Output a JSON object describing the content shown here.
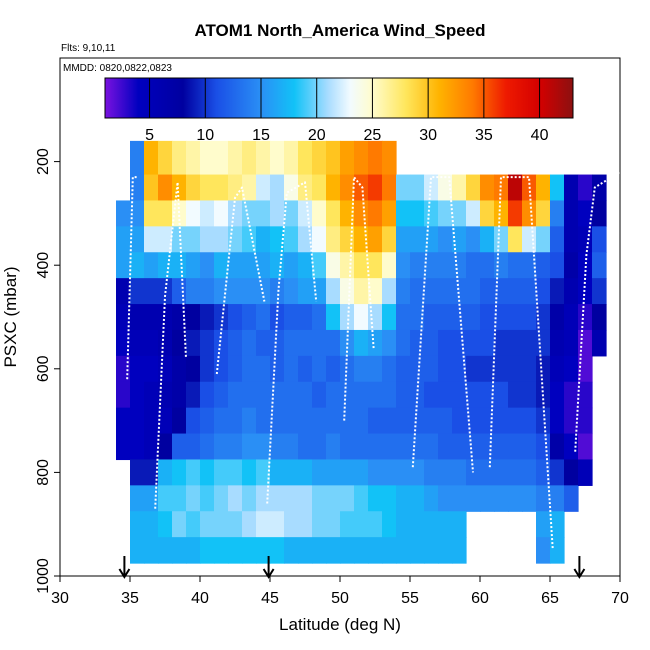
{
  "chart_data": {
    "type": "heatmap",
    "title": "ATOM1 North_America Wind_Speed",
    "flights_note": "Flts: 9,10,11",
    "dates_note": "MMDD: 0820,0822,0823",
    "xlabel": "Latitude (deg N)",
    "ylabel": "PSXC (mbar)",
    "xlim": [
      30,
      70
    ],
    "ylim": [
      1000,
      0
    ],
    "x_ticks": [
      30,
      35,
      40,
      45,
      50,
      55,
      60,
      65,
      70
    ],
    "x_tick_labels": [
      "30",
      "35",
      "40",
      "45",
      "50",
      "55",
      "60",
      "65",
      "70"
    ],
    "y_ticks": [
      200,
      400,
      600,
      800,
      1000
    ],
    "y_tick_labels": [
      "200",
      "400",
      "600",
      "800",
      "1000"
    ],
    "colorbar": {
      "range": [
        1,
        43
      ],
      "ticks": [
        5,
        10,
        15,
        20,
        25,
        30,
        35,
        40
      ],
      "tick_labels": [
        "5",
        "10",
        "15",
        "20",
        "25",
        "30",
        "35",
        "40"
      ],
      "stops": [
        {
          "v": 1,
          "color": "#7a12e0"
        },
        {
          "v": 4,
          "color": "#0000bf"
        },
        {
          "v": 8,
          "color": "#0000a0"
        },
        {
          "v": 11,
          "color": "#1a4fe6"
        },
        {
          "v": 15,
          "color": "#2a8ff5"
        },
        {
          "v": 18,
          "color": "#12c2f7"
        },
        {
          "v": 21,
          "color": "#a8dcff"
        },
        {
          "v": 23,
          "color": "#f2fbff"
        },
        {
          "v": 25,
          "color": "#fffccc"
        },
        {
          "v": 28,
          "color": "#ffe65c"
        },
        {
          "v": 31,
          "color": "#ffb300"
        },
        {
          "v": 34,
          "color": "#ff7a00"
        },
        {
          "v": 37,
          "color": "#ee1a00"
        },
        {
          "v": 40,
          "color": "#d40000"
        },
        {
          "v": 43,
          "color": "#8c1010"
        }
      ]
    },
    "cell_width_deg": 1.0,
    "cell_height_mbar": 50,
    "cell_pressures_mbar": [
      200,
      250,
      300,
      350,
      400,
      450,
      500,
      550,
      600,
      650,
      700,
      750,
      800,
      850,
      900,
      950
    ],
    "columns": [
      {
        "lat": 34.5,
        "values": [
          null,
          null,
          null,
          null,
          null,
          null,
          null,
          null,
          null,
          null,
          null,
          null,
          null,
          null,
          null,
          null
        ]
      },
      {
        "lat": 35.5,
        "values": [
          null,
          15,
          17,
          15,
          16,
          8,
          8,
          5,
          4,
          5,
          5,
          5,
          9,
          null,
          null,
          null
        ]
      },
      {
        "lat": 36.5,
        "values": [
          null,
          29,
          28,
          22,
          16,
          8,
          8,
          6,
          5,
          6,
          5,
          5,
          9,
          null,
          null,
          null
        ]
      },
      {
        "lat": 37.5,
        "values": [
          null,
          null,
          null,
          null,
          null,
          null,
          null,
          null,
          null,
          null,
          null,
          null,
          null,
          null,
          null,
          null
        ]
      },
      {
        "lat": 38.5,
        "values": [
          null,
          null,
          null,
          null,
          null,
          null,
          null,
          null,
          null,
          null,
          null,
          null,
          null,
          null,
          null,
          null
        ]
      },
      {
        "lat": 39.5,
        "values": [
          null,
          null,
          null,
          null,
          null,
          null,
          null,
          null,
          null,
          null,
          null,
          null,
          null,
          null,
          null,
          null
        ]
      },
      {
        "lat": 40.5,
        "values": [
          null,
          null,
          null,
          null,
          null,
          null,
          null,
          null,
          null,
          null,
          null,
          null,
          null,
          null,
          null,
          null
        ]
      },
      {
        "lat": 41.5,
        "values": [
          null,
          null,
          null,
          null,
          null,
          null,
          null,
          null,
          null,
          null,
          null,
          null,
          null,
          null,
          null,
          null
        ]
      },
      {
        "lat": 42.5,
        "values": [
          null,
          null,
          null,
          null,
          null,
          null,
          null,
          null,
          null,
          null,
          null,
          null,
          null,
          null,
          null,
          null
        ]
      },
      {
        "lat": 43.5,
        "values": [
          null,
          null,
          null,
          null,
          null,
          null,
          null,
          null,
          null,
          null,
          null,
          null,
          null,
          null,
          null,
          null
        ]
      },
      {
        "lat": 44.5,
        "values": [
          null,
          null,
          null,
          null,
          null,
          null,
          null,
          null,
          null,
          null,
          null,
          null,
          null,
          null,
          null,
          null
        ]
      },
      {
        "lat": 45.5,
        "values": [
          null,
          null,
          null,
          null,
          null,
          null,
          null,
          null,
          null,
          null,
          null,
          null,
          null,
          null,
          null,
          null
        ]
      },
      {
        "lat": 46.5,
        "values": [
          null,
          null,
          null,
          null,
          null,
          null,
          null,
          null,
          null,
          null,
          null,
          null,
          null,
          null,
          null,
          null
        ]
      },
      {
        "lat": 47.5,
        "values": [
          null,
          null,
          null,
          null,
          null,
          null,
          null,
          null,
          null,
          null,
          null,
          null,
          null,
          null,
          null,
          null
        ]
      },
      {
        "lat": 48.5,
        "values": [
          null,
          null,
          null,
          null,
          null,
          null,
          null,
          null,
          null,
          null,
          null,
          null,
          null,
          null,
          null,
          null
        ]
      },
      {
        "lat": 49.5,
        "values": [
          null,
          null,
          null,
          null,
          null,
          null,
          null,
          null,
          null,
          null,
          null,
          null,
          null,
          null,
          null,
          null
        ]
      },
      {
        "lat": 50.5,
        "values": [
          null,
          null,
          null,
          null,
          null,
          null,
          null,
          null,
          null,
          null,
          null,
          null,
          null,
          null,
          null,
          null
        ]
      },
      {
        "lat": 51.5,
        "values": [
          null,
          null,
          null,
          null,
          null,
          null,
          null,
          null,
          null,
          null,
          null,
          null,
          null,
          null,
          null,
          null
        ]
      },
      {
        "lat": 52.5,
        "values": [
          null,
          null,
          null,
          null,
          null,
          null,
          null,
          null,
          null,
          null,
          null,
          null,
          null,
          null,
          null,
          null
        ]
      },
      {
        "lat": 53.5,
        "values": [
          null,
          null,
          null,
          null,
          null,
          null,
          null,
          null,
          null,
          null,
          null,
          null,
          null,
          null,
          null,
          null
        ]
      },
      {
        "lat": 54.5,
        "values": [
          null,
          null,
          null,
          null,
          null,
          null,
          null,
          null,
          null,
          null,
          null,
          null,
          null,
          null,
          null,
          null
        ]
      },
      {
        "lat": 55.5,
        "values": [
          null,
          null,
          null,
          null,
          null,
          null,
          null,
          null,
          null,
          null,
          null,
          null,
          null,
          null,
          null,
          null
        ]
      },
      {
        "lat": 56.5,
        "values": [
          null,
          null,
          null,
          null,
          null,
          null,
          null,
          null,
          null,
          null,
          null,
          null,
          null,
          null,
          null,
          null
        ]
      },
      {
        "lat": 57.5,
        "values": [
          null,
          null,
          null,
          null,
          null,
          null,
          null,
          null,
          null,
          null,
          null,
          null,
          null,
          null,
          null,
          null
        ]
      },
      {
        "lat": 58.5,
        "values": [
          null,
          null,
          null,
          null,
          null,
          null,
          null,
          null,
          null,
          null,
          null,
          null,
          null,
          null,
          null,
          null
        ]
      },
      {
        "lat": 59.5,
        "values": [
          null,
          null,
          null,
          null,
          null,
          null,
          null,
          null,
          null,
          null,
          null,
          null,
          null,
          null,
          null,
          null
        ]
      },
      {
        "lat": 60.5,
        "values": [
          null,
          null,
          null,
          null,
          null,
          null,
          null,
          null,
          null,
          null,
          null,
          null,
          null,
          null,
          null,
          null
        ]
      },
      {
        "lat": 61.5,
        "values": [
          null,
          null,
          null,
          null,
          null,
          null,
          null,
          null,
          null,
          null,
          null,
          null,
          null,
          null,
          null,
          null
        ]
      },
      {
        "lat": 62.5,
        "values": [
          null,
          null,
          null,
          null,
          null,
          null,
          null,
          null,
          null,
          null,
          null,
          null,
          null,
          null,
          null,
          null
        ]
      },
      {
        "lat": 63.5,
        "values": [
          null,
          null,
          null,
          null,
          null,
          null,
          null,
          null,
          null,
          null,
          null,
          null,
          null,
          null,
          null,
          null
        ]
      },
      {
        "lat": 64.5,
        "values": [
          null,
          null,
          null,
          null,
          null,
          null,
          null,
          null,
          null,
          null,
          null,
          null,
          null,
          null,
          null,
          null
        ]
      },
      {
        "lat": 65.5,
        "values": [
          null,
          null,
          null,
          null,
          null,
          null,
          null,
          null,
          null,
          null,
          null,
          null,
          null,
          null,
          null,
          null
        ]
      },
      {
        "lat": 66.5,
        "values": [
          null,
          null,
          null,
          null,
          null,
          null,
          null,
          null,
          null,
          null,
          null,
          null,
          null,
          null,
          null,
          null
        ]
      },
      {
        "lat": 67.5,
        "values": [
          null,
          null,
          null,
          null,
          null,
          null,
          null,
          null,
          null,
          null,
          null,
          null,
          null,
          null,
          null,
          null
        ]
      },
      {
        "lat": 68.5,
        "values": [
          null,
          null,
          null,
          null,
          null,
          null,
          null,
          null,
          null,
          null,
          null,
          null,
          null,
          null,
          null,
          null
        ]
      }
    ],
    "flight_track_segments": [
      {
        "lat": [
          34.8,
          35.2,
          35.6
        ],
        "psxc": [
          620,
          230,
          230
        ]
      },
      {
        "lat": [
          36.8,
          37.5,
          38.4,
          39.0
        ],
        "psxc": [
          870,
          460,
          240,
          580
        ]
      },
      {
        "lat": [
          41.2,
          42.5,
          43.0,
          44.6
        ],
        "psxc": [
          610,
          270,
          250,
          470
        ]
      },
      {
        "lat": [
          44.8,
          45.6,
          46.2,
          47.5,
          48.3
        ],
        "psxc": [
          860,
          450,
          260,
          240,
          470
        ]
      },
      {
        "lat": [
          50.3,
          51.0,
          51.6,
          52.4
        ],
        "psxc": [
          700,
          230,
          250,
          560
        ]
      },
      {
        "lat": [
          55.2,
          56.5,
          57.8,
          59.5
        ],
        "psxc": [
          790,
          230,
          230,
          800
        ]
      },
      {
        "lat": [
          60.7,
          61.5,
          63.5,
          65.2
        ],
        "psxc": [
          790,
          230,
          230,
          950
        ]
      },
      {
        "lat": [
          66.8,
          67.6,
          68.2,
          70.0
        ],
        "psxc": [
          760,
          380,
          250,
          220
        ]
      }
    ],
    "arrows_lat": [
      34.6,
      44.9,
      67.1
    ]
  }
}
